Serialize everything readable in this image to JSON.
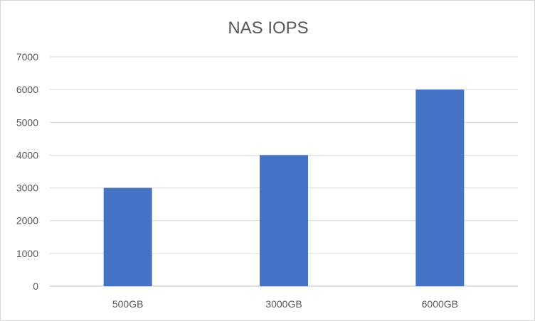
{
  "chart_data": {
    "type": "bar",
    "title": "NAS IOPS",
    "categories": [
      "500GB",
      "3000GB",
      "6000GB"
    ],
    "series": [
      {
        "values": [
          3000,
          4000,
          6000
        ]
      }
    ],
    "ylim": [
      0,
      7000
    ],
    "yticks": [
      0,
      1000,
      2000,
      3000,
      4000,
      5000,
      6000,
      7000
    ],
    "grid": true,
    "legend": "none",
    "colors": {
      "bar": "#4472c4"
    }
  }
}
